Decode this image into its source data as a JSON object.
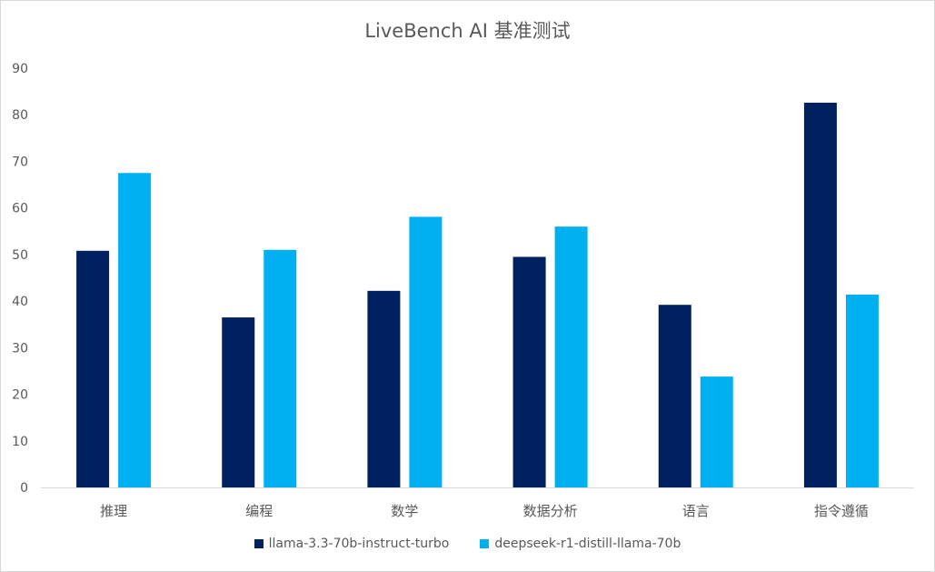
{
  "chart_data": {
    "type": "bar",
    "title": "LiveBench AI 基准测试",
    "categories": [
      "推理",
      "编程",
      "数学",
      "数据分析",
      "语言",
      "指令遵循"
    ],
    "series": [
      {
        "name": "llama-3.3-70b-instruct-turbo",
        "color": "#002060",
        "values": [
          50.8,
          36.5,
          42.2,
          49.5,
          39.2,
          82.6
        ]
      },
      {
        "name": "deepseek-r1-distill-llama-70b",
        "color": "#00b0f0",
        "values": [
          67.5,
          51.0,
          58.1,
          56.0,
          23.8,
          41.4
        ]
      }
    ],
    "ylim": [
      0,
      90
    ],
    "yticks": [
      0,
      10,
      20,
      30,
      40,
      50,
      60,
      70,
      80,
      90
    ],
    "grid": false,
    "legend": "bottom"
  }
}
